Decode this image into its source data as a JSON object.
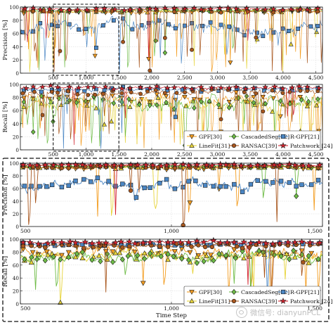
{
  "chart_data": [
    {
      "type": "line",
      "panel": "top-precision",
      "ylabel": "Precision [%]",
      "x": [
        0,
        4600
      ],
      "xticks": [
        500,
        1000,
        1500,
        2000,
        2500,
        3000,
        3500,
        4000,
        4500
      ],
      "xtick_labels": [
        "500",
        "1,000",
        "1,500",
        "2,000",
        "2,500",
        "3,000",
        "3,500",
        "4,000",
        "4,500"
      ],
      "ylim": [
        0,
        100
      ],
      "yticks": [
        0,
        20,
        40,
        60,
        80,
        100
      ],
      "highlight_range": [
        500,
        1500
      ],
      "series": [
        {
          "name": "GPF[30]",
          "base": 93,
          "noise": 4,
          "drops": 22
        },
        {
          "name": "LineFit[31]",
          "base": 94,
          "noise": 4,
          "drops": 12
        },
        {
          "name": "CascadedSeg[32]",
          "base": 95,
          "noise": 3,
          "drops": 10
        },
        {
          "name": "RANSAC[39]",
          "base": 94,
          "noise": 3,
          "drops": 26
        },
        {
          "name": "R-GPF[21]",
          "base": 70,
          "noise": 14,
          "drops": 8
        },
        {
          "name": "Patchwork [24]",
          "base": 97,
          "noise": 2,
          "drops": 4
        }
      ]
    },
    {
      "type": "line",
      "panel": "top-recall",
      "ylabel": "Recall [%]",
      "x": [
        0,
        4600
      ],
      "xticks": [
        500,
        1000,
        1500,
        2000,
        2500,
        3000,
        3500,
        4000,
        4500
      ],
      "xtick_labels": [
        "500",
        "1,000",
        "1,500",
        "2,000",
        "2,500",
        "3,000",
        "3,500",
        "4,000",
        "4,500"
      ],
      "ylim": [
        0,
        100
      ],
      "yticks": [
        0,
        20,
        40,
        60,
        80,
        100
      ],
      "highlight_range": [
        500,
        1500
      ],
      "series": [
        {
          "name": "GPF[30]",
          "base": 80,
          "noise": 12,
          "drops": 30
        },
        {
          "name": "LineFit[31]",
          "base": 70,
          "noise": 12,
          "drops": 18
        },
        {
          "name": "CascadedSeg[32]",
          "base": 72,
          "noise": 14,
          "drops": 16
        },
        {
          "name": "RANSAC[39]",
          "base": 88,
          "noise": 6,
          "drops": 20
        },
        {
          "name": "R-GPF[21]",
          "base": 92,
          "noise": 4,
          "drops": 6
        },
        {
          "name": "Patchwork [24]",
          "base": 95,
          "noise": 3,
          "drops": 4
        }
      ]
    },
    {
      "type": "line",
      "panel": "zoom-precision",
      "ylabel": "Precision [%]",
      "x": [
        500,
        1500
      ],
      "xticks": [
        500,
        1000,
        1500
      ],
      "xtick_labels": [
        "500",
        "1,000",
        "1,500"
      ],
      "ylim": [
        0,
        100
      ],
      "yticks": [
        0,
        20,
        40,
        60,
        80,
        100
      ],
      "series": [
        {
          "name": "GPF[30]",
          "base": 93,
          "noise": 3,
          "drops": 5
        },
        {
          "name": "LineFit[31]",
          "base": 94,
          "noise": 3,
          "drops": 3
        },
        {
          "name": "CascadedSeg[32]",
          "base": 95,
          "noise": 2,
          "drops": 2
        },
        {
          "name": "RANSAC[39]",
          "base": 94,
          "noise": 3,
          "drops": 6
        },
        {
          "name": "R-GPF[21]",
          "base": 66,
          "noise": 12,
          "drops": 1
        },
        {
          "name": "Patchwork [24]",
          "base": 97,
          "noise": 2,
          "drops": 1
        }
      ]
    },
    {
      "type": "line",
      "panel": "zoom-recall",
      "ylabel": "Recall [%]",
      "xlabel": "Time Step",
      "x": [
        500,
        1500
      ],
      "xticks": [
        500,
        1000,
        1500
      ],
      "xtick_labels": [
        "500",
        "1,000",
        "1,500"
      ],
      "ylim": [
        0,
        100
      ],
      "yticks": [
        0,
        20,
        40,
        60,
        80,
        100
      ],
      "series": [
        {
          "name": "GPF[30]",
          "base": 80,
          "noise": 12,
          "drops": 10
        },
        {
          "name": "LineFit[31]",
          "base": 74,
          "noise": 10,
          "drops": 4
        },
        {
          "name": "CascadedSeg[32]",
          "base": 72,
          "noise": 12,
          "drops": 5
        },
        {
          "name": "RANSAC[39]",
          "base": 90,
          "noise": 5,
          "drops": 4
        },
        {
          "name": "R-GPF[21]",
          "base": 92,
          "noise": 4,
          "drops": 1
        },
        {
          "name": "Patchwork [24]",
          "base": 95,
          "noise": 3,
          "drops": 1
        }
      ]
    }
  ],
  "legend": {
    "placement": "bottom-right",
    "entries": [
      "GPF[30]",
      "CascadedSeg[32]",
      "R-GPF[21]",
      "LineFit[31]",
      "RANSAC[39]",
      "Patchwork [24]"
    ]
  },
  "colors": {
    "GPF[30]": "#f39c1f",
    "LineFit[31]": "#e7d43a",
    "CascadedSeg[32]": "#6dbb45",
    "RANSAC[39]": "#a8561d",
    "R-GPF[21]": "#4a86c4",
    "Patchwork [24]": "#d2222d"
  },
  "markers": {
    "GPF[30]": "triangle-down",
    "LineFit[31]": "triangle-up",
    "CascadedSeg[32]": "diamond",
    "RANSAC[39]": "circle",
    "R-GPF[21]": "square",
    "Patchwork [24]": "star"
  },
  "watermark": {
    "text": "微信号: dianyunPCL",
    "icon": "wechat-icon"
  }
}
